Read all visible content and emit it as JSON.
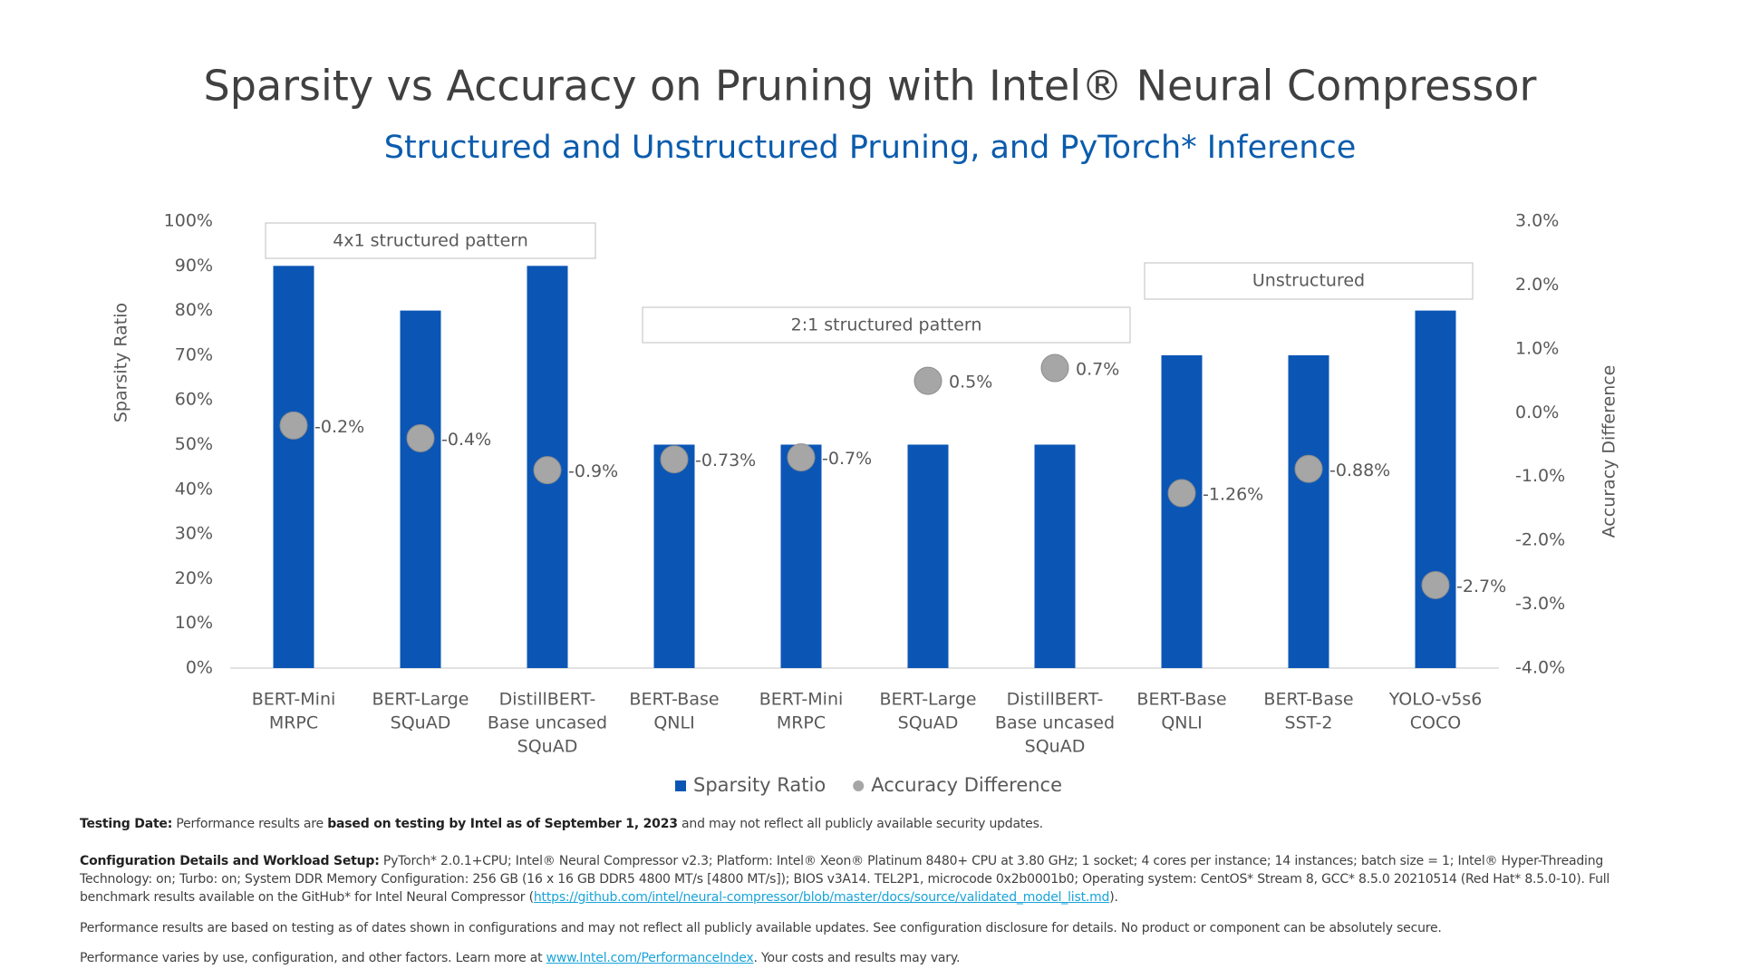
{
  "chart_data": {
    "type": "bar",
    "title": "Sparsity vs Accuracy on Pruning with Intel® Neural Compressor",
    "subtitle": "Structured and Unstructured Pruning, and PyTorch* Inference",
    "y_label": "Sparsity Ratio",
    "y2_label": "Accuracy Difference",
    "categories": [
      [
        "BERT-Mini",
        "MRPC"
      ],
      [
        "BERT-Large",
        "SQuAD"
      ],
      [
        "DistillBERT-",
        "Base uncased",
        "SQuAD"
      ],
      [
        "BERT-Base",
        "QNLI"
      ],
      [
        "BERT-Mini",
        "MRPC"
      ],
      [
        "BERT-Large",
        "SQuAD"
      ],
      [
        "DistillBERT-",
        "Base uncased",
        "SQuAD"
      ],
      [
        "BERT-Base",
        "QNLI"
      ],
      [
        "BERT-Base",
        "SST-2"
      ],
      [
        "YOLO-v5s6",
        "COCO"
      ]
    ],
    "series": [
      {
        "name": "Sparsity Ratio",
        "type": "bar",
        "color": "#0b56b5",
        "values": [
          90,
          80,
          90,
          50,
          50,
          50,
          50,
          70,
          70,
          80
        ]
      },
      {
        "name": "Accuracy Difference",
        "type": "scatter",
        "axis": "y2",
        "color": "#a6a6a6",
        "values": [
          -0.2,
          -0.4,
          -0.9,
          -0.73,
          -0.7,
          0.5,
          0.7,
          -1.26,
          -0.88,
          -2.7
        ],
        "value_labels": [
          "-0.2%",
          "-0.4%",
          "-0.9%",
          "-0.73%",
          "-0.7%",
          "0.5%",
          "0.7%",
          "-1.26%",
          "-0.88%",
          "-2.7%"
        ]
      }
    ],
    "ylim": [
      0,
      100
    ],
    "yticks": [
      {
        "value": 0,
        "label": "0%"
      },
      {
        "value": 10,
        "label": "10%"
      },
      {
        "value": 20,
        "label": "20%"
      },
      {
        "value": 30,
        "label": "30%"
      },
      {
        "value": 40,
        "label": "40%"
      },
      {
        "value": 50,
        "label": "50%"
      },
      {
        "value": 60,
        "label": "60%"
      },
      {
        "value": 70,
        "label": "70%"
      },
      {
        "value": 80,
        "label": "80%"
      },
      {
        "value": 90,
        "label": "90%"
      },
      {
        "value": 100,
        "label": "100%"
      }
    ],
    "y2lim": [
      -4,
      3
    ],
    "y2ticks": [
      {
        "value": -4,
        "label": "-4.0%"
      },
      {
        "value": -3,
        "label": "-3.0%"
      },
      {
        "value": -2,
        "label": "-2.0%"
      },
      {
        "value": -1,
        "label": "-1.0%"
      },
      {
        "value": 0,
        "label": "0.0%"
      },
      {
        "value": 1,
        "label": "1.0%"
      },
      {
        "value": 2,
        "label": "2.0%"
      },
      {
        "value": 3,
        "label": "3.0%"
      }
    ],
    "grid": false,
    "legend": "bottom",
    "annotations": [
      "4x1 structured pattern",
      "2:1 structured pattern",
      "Unstructured"
    ]
  },
  "footnotes": [
    [
      "Testing Date:",
      " Performance results are ",
      "based on testing by Intel as of September 1, 2023",
      " and may not reflect all publicly available security updates."
    ],
    [
      "Configuration Details and Workload Setup:",
      " PyTorch* 2.0.1+CPU; Intel® Neural Compressor v2.3; Platform: Intel® Xeon® Platinum 8480+ CPU at 3.80 GHz; 1 socket; 4 cores per instance; 14 instances; batch size = 1; Intel® Hyper-Threading Technology: on; Turbo: on; System DDR Memory Configuration: 256 GB (16 x 16 GB DDR5 4800 MT/s [4800 MT/s]); BIOS v3A14. TEL2P1, microcode 0x2b0001b0; Operating system: CentOS* Stream 8, GCC* 8.5.0 20210514 (Red Hat* 8.5.0-10). Full benchmark results available on the GitHub* for Intel Neural Compressor (",
      "https://github.com/intel/neural-compressor/blob/master/docs/source/validated_model_list.md",
      ")."
    ],
    [
      "Performance results are based on testing as of dates shown in configurations and may not reflect all publicly available updates. See configuration disclosure for details.  No product or component can be absolutely secure."
    ],
    [
      "Performance varies by use, configuration, and other factors. Learn more at ",
      "www.Intel.com/PerformanceIndex",
      ". Your costs and results may vary."
    ]
  ]
}
